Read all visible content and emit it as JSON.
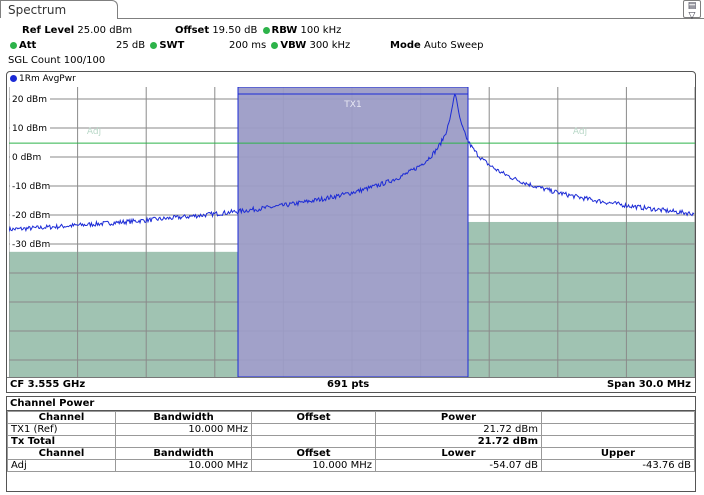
{
  "tab": {
    "label": "Spectrum"
  },
  "header": {
    "ref_level_label": "Ref Level",
    "ref_level_value": "25.00 dBm",
    "offset_label": "Offset",
    "offset_value": "19.50 dB",
    "rbw_label": "RBW",
    "rbw_value": "100 kHz",
    "att_label": "Att",
    "att_value": "25 dB",
    "swt_label": "SWT",
    "swt_value": "200 ms",
    "vbw_label": "VBW",
    "vbw_value": "300 kHz",
    "mode_label": "Mode",
    "mode_value": "Auto Sweep",
    "sgl_count": "SGL Count 100/100"
  },
  "diagram": {
    "trace_label": "1Rm AvgPwr",
    "y_ticks": [
      "20 dBm",
      "10 dBm",
      "0 dBm",
      "-10 dBm",
      "-20 dBm",
      "-30 dBm"
    ],
    "channel_label": "TX1",
    "adj_left_label": "Adj",
    "adj_right_label": "Adj",
    "footer_cf": "CF 3.555 GHz",
    "footer_pts": "691 pts",
    "footer_span": "Span 30.0 MHz"
  },
  "colors": {
    "trace": "#1c2bd6",
    "channel_fill": "#9c9cc6",
    "adj_fill": "#a0c3b2",
    "limit_green": "#2db34a"
  },
  "chart_data": {
    "type": "line",
    "ylim": [
      -40,
      25
    ],
    "y_ticks": [
      20,
      10,
      0,
      -10,
      -20,
      -30
    ],
    "x_center": "3.555 GHz",
    "x_span": "30.0 MHz",
    "points": 691,
    "series": [
      {
        "name": "1Rm AvgPwr",
        "peak_dbm": 21.72
      }
    ],
    "tx_channel": {
      "label": "TX1",
      "bandwidth": "10.000 MHz",
      "level_dbm": 21.72
    },
    "adj_channels": [
      {
        "label": "Adj",
        "side": "lower",
        "level_db": -54.07
      },
      {
        "label": "Adj",
        "side": "upper",
        "level_db": -43.76
      }
    ]
  },
  "table": {
    "title": "Channel Power",
    "head1": [
      "Channel",
      "Bandwidth",
      "Offset",
      "Power",
      ""
    ],
    "row1": [
      "TX1 (Ref)",
      "10.000 MHz",
      "",
      "21.72 dBm",
      ""
    ],
    "row2": [
      "Tx Total",
      "",
      "",
      "21.72 dBm",
      ""
    ],
    "head2": [
      "Channel",
      "Bandwidth",
      "Offset",
      "Lower",
      "Upper"
    ],
    "row3": [
      "Adj",
      "10.000 MHz",
      "10.000 MHz",
      "-54.07 dB",
      "-43.76 dB"
    ]
  }
}
